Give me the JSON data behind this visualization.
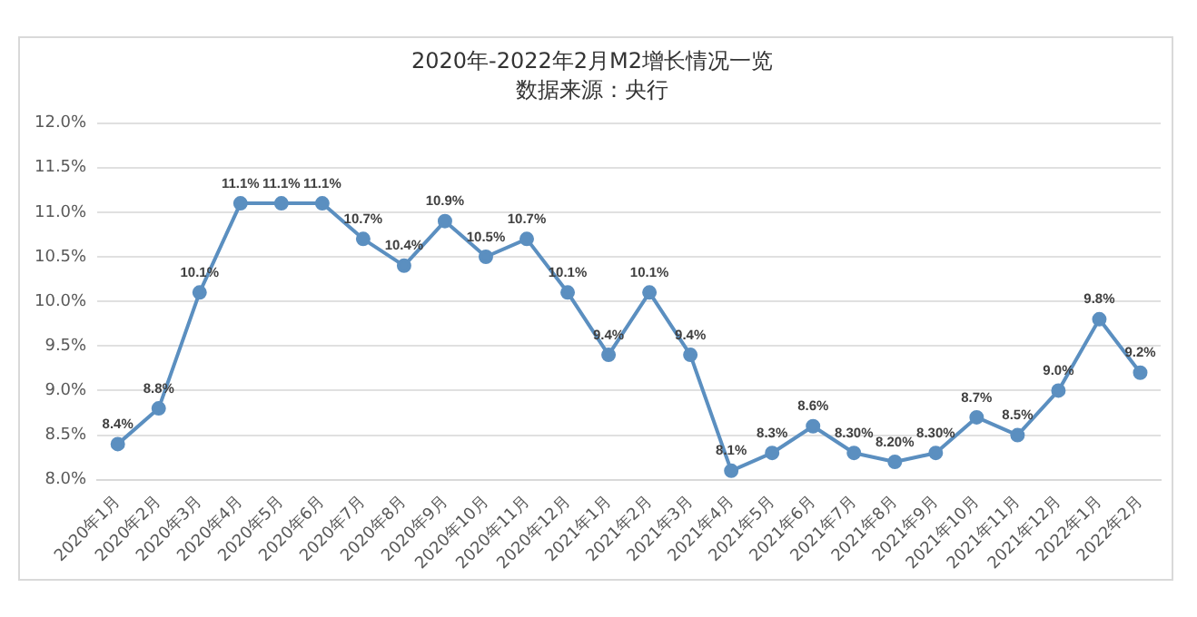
{
  "chart_data": {
    "type": "line",
    "title": "2020年-2022年2月M2增长情况一览",
    "subtitle": "数据来源：央行",
    "categories": [
      "2020年1月",
      "2020年2月",
      "2020年3月",
      "2020年4月",
      "2020年5月",
      "2020年6月",
      "2020年7月",
      "2020年8月",
      "2020年9月",
      "2020年10月",
      "2020年11月",
      "2020年12月",
      "2021年1月",
      "2021年2月",
      "2021年3月",
      "2021年4月",
      "2021年5月",
      "2021年6月",
      "2021年7月",
      "2021年8月",
      "2021年9月",
      "2021年10月",
      "2021年11月",
      "2021年12月",
      "2022年1月",
      "2022年2月"
    ],
    "series": [
      {
        "color": "#5b8fc0",
        "values": [
          8.4,
          8.8,
          10.1,
          11.1,
          11.1,
          11.1,
          10.7,
          10.4,
          10.9,
          10.5,
          10.7,
          10.1,
          9.4,
          10.1,
          9.4,
          8.1,
          8.3,
          8.6,
          8.3,
          8.2,
          8.3,
          8.7,
          8.5,
          9.0,
          9.8,
          9.2
        ],
        "value_labels": [
          "8.4%",
          "8.8%",
          "10.1%",
          "11.1%",
          "11.1%",
          "11.1%",
          "10.7%",
          "10.4%",
          "10.9%",
          "10.5%",
          "10.7%",
          "10.1%",
          "9.4%",
          "10.1%",
          "9.4%",
          "8.1%",
          "8.3%",
          "8.6%",
          "8.30%",
          "8.20%",
          "8.30%",
          "8.7%",
          "8.5%",
          "9.0%",
          "9.8%",
          "9.2%"
        ]
      }
    ],
    "ylim": [
      8.0,
      12.0
    ],
    "yticks": [
      {
        "value": 8.0,
        "label": "8.0%"
      },
      {
        "value": 8.5,
        "label": "8.5%"
      },
      {
        "value": 9.0,
        "label": "9.0%"
      },
      {
        "value": 9.5,
        "label": "9.5%"
      },
      {
        "value": 10.0,
        "label": "10.0%"
      },
      {
        "value": 10.5,
        "label": "10.5%"
      },
      {
        "value": 11.0,
        "label": "11.0%"
      },
      {
        "value": 11.5,
        "label": "11.5%"
      },
      {
        "value": 12.0,
        "label": "12.0%"
      }
    ],
    "grid": "y",
    "legend": false,
    "marker": "circle",
    "line_style": "solid"
  }
}
